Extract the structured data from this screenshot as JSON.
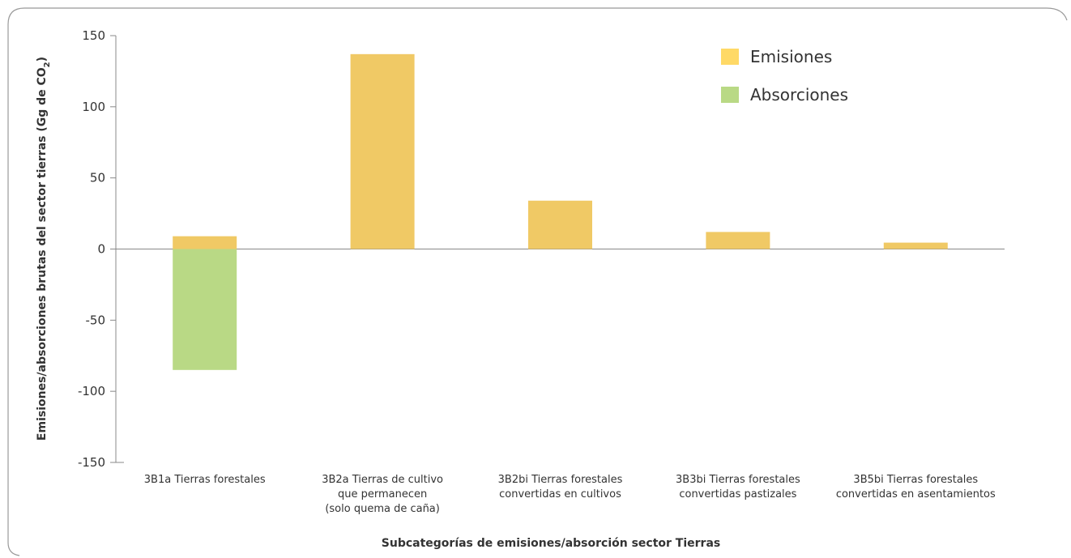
{
  "chart_data": {
    "type": "bar",
    "title": "",
    "xlabel": "Subcategorías de emisiones/absorción sector Tierras",
    "ylabel": "Emisiones/absorciones brutas del sector tierras (Gg de CO",
    "ylabel_subscript": "2",
    "ylabel_close": ")",
    "ylim": [
      -150,
      150
    ],
    "yticks": [
      150,
      100,
      50,
      0,
      -50,
      -100,
      -150
    ],
    "grid": false,
    "legend_position": "top-right",
    "categories": [
      [
        "3B1a Tierras forestales"
      ],
      [
        "3B2a Tierras de cultivo",
        "que permanecen",
        "(solo quema de caña)"
      ],
      [
        "3B2bi Tierras forestales",
        "convertidas en cultivos"
      ],
      [
        "3B3bi Tierras forestales",
        "convertidas pastizales"
      ],
      [
        "3B5bi Tierras forestales",
        "convertidas en asentamientos"
      ]
    ],
    "series": [
      {
        "name": "Emisiones",
        "color": "#f0c965",
        "legend_color": "#ffd966",
        "values": [
          9,
          137,
          34,
          12,
          4.5
        ]
      },
      {
        "name": "Absorciones",
        "color": "#b9d985",
        "legend_color": "#b9d985",
        "values": [
          -85,
          0,
          0,
          0,
          0
        ]
      }
    ]
  }
}
